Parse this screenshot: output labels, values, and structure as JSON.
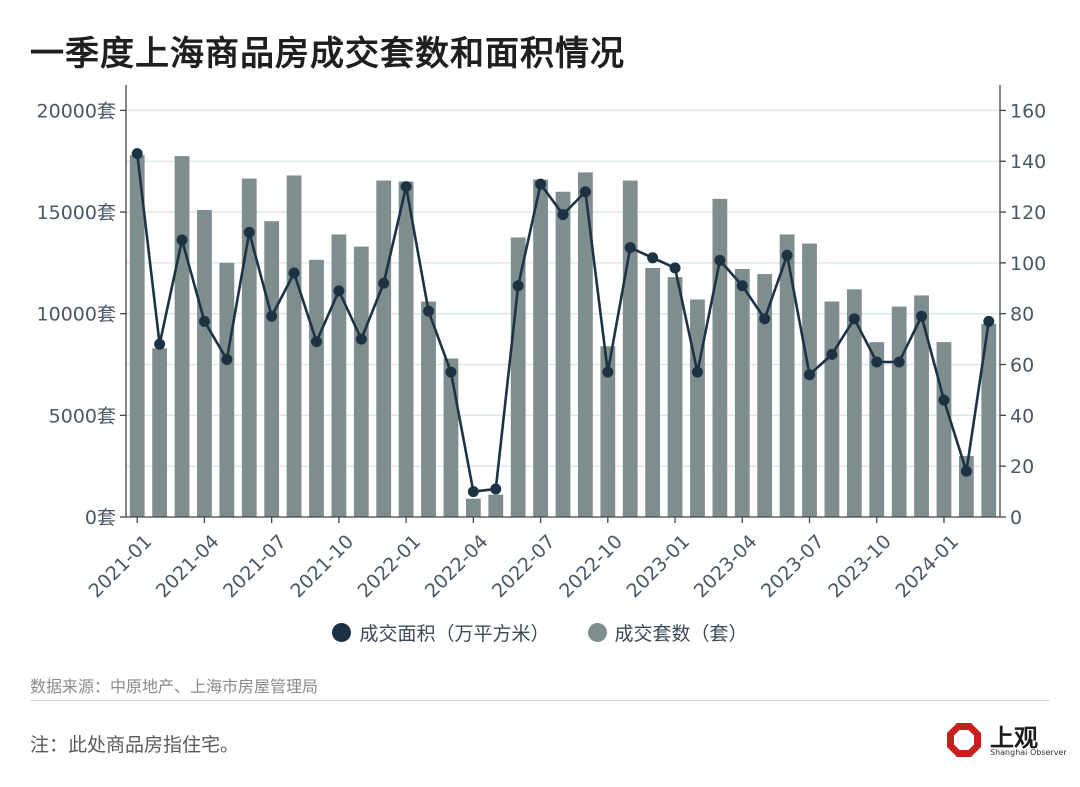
{
  "title": "一季度上海商品房成交套数和面积情况",
  "source": "数据来源：中原地产、上海市房屋管理局",
  "note": "注：此处商品房指住宅。",
  "logo": {
    "name": "上观",
    "sub": "Shanghai Observer"
  },
  "colors": {
    "bar": "#7e8e8e",
    "line": "#1d3344",
    "grid": "#d9e6e6",
    "axis": "#444444"
  },
  "chart_data": {
    "type": "bar+line",
    "months": [
      "2021-01",
      "2021-02",
      "2021-03",
      "2021-04",
      "2021-05",
      "2021-06",
      "2021-07",
      "2021-08",
      "2021-09",
      "2021-10",
      "2021-11",
      "2021-12",
      "2022-01",
      "2022-02",
      "2022-03",
      "2022-04",
      "2022-05",
      "2022-06",
      "2022-07",
      "2022-08",
      "2022-09",
      "2022-10",
      "2022-11",
      "2022-12",
      "2023-01",
      "2023-02",
      "2023-03",
      "2023-04",
      "2023-05",
      "2023-06",
      "2023-07",
      "2023-08",
      "2023-09",
      "2023-10",
      "2023-11",
      "2023-12",
      "2024-01",
      "2024-02",
      "2024-03"
    ],
    "x_tick_labels": [
      "2021-01",
      "2021-04",
      "2021-07",
      "2021-10",
      "2022-01",
      "2022-04",
      "2022-07",
      "2022-10",
      "2023-01",
      "2023-04",
      "2023-07",
      "2023-10",
      "2024-01"
    ],
    "left_axis": {
      "ylim": [
        0,
        21250
      ],
      "ticks": [
        "0套",
        "5000套",
        "10000套",
        "15000套",
        "20000套"
      ],
      "tick_values": [
        0,
        5000,
        10000,
        15000,
        20000
      ]
    },
    "right_axis": {
      "ylim": [
        0,
        170
      ],
      "ticks": [
        "0",
        "20",
        "40",
        "60",
        "80",
        "100",
        "120",
        "140",
        "160"
      ],
      "tick_values": [
        0,
        20,
        40,
        60,
        80,
        100,
        120,
        140,
        160
      ]
    },
    "series": [
      {
        "name": "成交套数（套）",
        "type": "bar",
        "axis": "left",
        "values": [
          17800,
          8300,
          17750,
          15100,
          12500,
          16650,
          14550,
          16800,
          12650,
          13900,
          13300,
          16550,
          16500,
          10600,
          7800,
          900,
          1100,
          13750,
          16600,
          16000,
          16950,
          8400,
          16550,
          12250,
          11800,
          10700,
          15650,
          12200,
          11950,
          13900,
          13450,
          10600,
          11200,
          8600,
          10350,
          10900,
          8600,
          3000,
          9500
        ]
      },
      {
        "name": "成交面积（万平方米）",
        "type": "line",
        "axis": "right",
        "values": [
          143,
          68,
          109,
          77,
          62,
          112,
          79,
          96,
          69,
          89,
          70,
          92,
          130,
          81,
          57,
          10,
          11,
          91,
          131,
          119,
          128,
          57,
          106,
          102,
          98,
          57,
          101,
          91,
          78,
          103,
          56,
          64,
          78,
          61,
          61,
          79,
          46,
          18,
          77
        ]
      }
    ]
  }
}
